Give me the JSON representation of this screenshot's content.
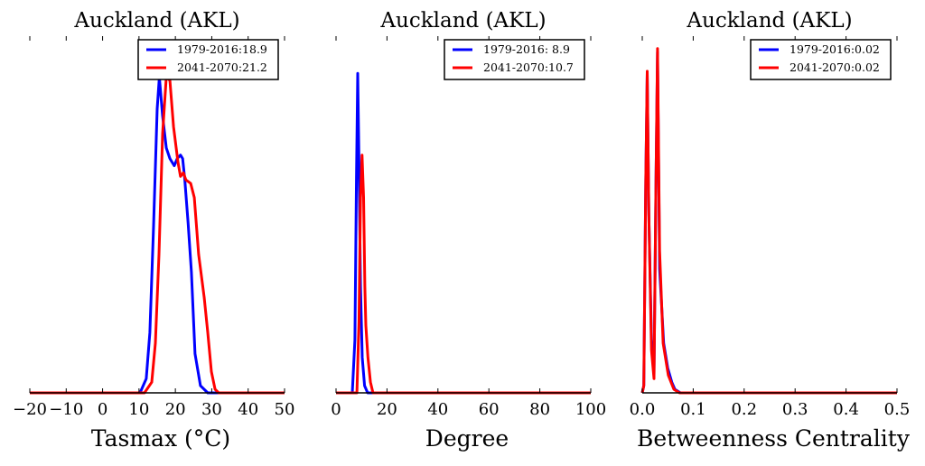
{
  "chart_data": [
    {
      "type": "line",
      "title": "Auckland (AKL)",
      "xlabel": "Tasmax ($^\\circ$C)",
      "xlabel_display": "Tasmax (°C)",
      "ylabel": "",
      "xlim": [
        -20,
        50
      ],
      "ylim": [
        0,
        1
      ],
      "xticks": [
        -20,
        -10,
        0,
        10,
        20,
        30,
        40,
        50
      ],
      "xtick_labels": [
        "−20",
        "−10",
        "0",
        "10",
        "20",
        "30",
        "40",
        "50"
      ],
      "legend_position": "top-right",
      "series": [
        {
          "name": "1979-2016:18.9",
          "color": "#0000ff",
          "x": [
            -20,
            10,
            10.5,
            12,
            13,
            14,
            15,
            15.6,
            16.5,
            17.5,
            18.5,
            19.7,
            20.5,
            21.4,
            22,
            22.6,
            23.5,
            24.4,
            25.4,
            26.9,
            28.9,
            50
          ],
          "y": [
            0,
            0,
            0.005,
            0.04,
            0.17,
            0.47,
            0.8,
            0.89,
            0.78,
            0.69,
            0.66,
            0.64,
            0.66,
            0.67,
            0.66,
            0.6,
            0.48,
            0.34,
            0.11,
            0.02,
            0,
            0
          ]
        },
        {
          "name": "2041-2070:21.2",
          "color": "#ff0000",
          "x": [
            -20,
            11.5,
            13.5,
            14.5,
            15.5,
            16.5,
            17.5,
            18.5,
            19.5,
            20.7,
            21.4,
            22.2,
            22.9,
            24.2,
            25.2,
            26.4,
            27.9,
            28.9,
            29.9,
            30.9,
            31.9,
            50
          ],
          "y": [
            0,
            0,
            0.03,
            0.14,
            0.39,
            0.73,
            0.89,
            0.88,
            0.75,
            0.65,
            0.61,
            0.62,
            0.6,
            0.59,
            0.55,
            0.39,
            0.27,
            0.17,
            0.06,
            0.01,
            0,
            0
          ]
        }
      ]
    },
    {
      "type": "line",
      "title": "Auckland (AKL)",
      "xlabel": "Degree",
      "xlabel_display": "Degree",
      "ylabel": "",
      "xlim": [
        0,
        100
      ],
      "ylim": [
        0,
        1
      ],
      "xticks": [
        0,
        20,
        40,
        60,
        80,
        100
      ],
      "xtick_labels": [
        "0",
        "20",
        "40",
        "60",
        "80",
        "100"
      ],
      "legend_position": "top-right",
      "series": [
        {
          "name": "1979-2016: 8.9",
          "color": "#0000ff",
          "x": [
            0,
            6.4,
            7.4,
            8.0,
            8.5,
            9.0,
            9.6,
            10.3,
            11.2,
            12.4,
            100
          ],
          "y": [
            0,
            0,
            0.15,
            0.6,
            0.9,
            0.65,
            0.3,
            0.1,
            0.02,
            0,
            0
          ]
        },
        {
          "name": "2041-2070:10.7",
          "color": "#ff0000",
          "x": [
            0,
            8.2,
            9.0,
            9.6,
            10.2,
            10.8,
            11.3,
            11.7,
            12.5,
            13.5,
            14.5,
            100
          ],
          "y": [
            0,
            0,
            0.2,
            0.55,
            0.67,
            0.55,
            0.3,
            0.19,
            0.1,
            0.03,
            0,
            0
          ]
        }
      ]
    },
    {
      "type": "line",
      "title": "Auckland (AKL)",
      "xlabel": "Betweenness Centrality",
      "xlabel_display": "Betweenness Centrality",
      "ylabel": "",
      "xlim": [
        0,
        0.5
      ],
      "ylim": [
        0,
        1
      ],
      "xticks": [
        0,
        0.1,
        0.2,
        0.3,
        0.4,
        0.5
      ],
      "xtick_labels": [
        "0.0",
        "0.1",
        "0.2",
        "0.3",
        "0.4",
        "0.5"
      ],
      "legend_position": "top-right",
      "series": [
        {
          "name": "1979-2016:0.02",
          "color": "#0000ff",
          "x": [
            0,
            0.003,
            0.007,
            0.0097,
            0.013,
            0.018,
            0.023,
            0.027,
            0.03,
            0.034,
            0.042,
            0.05,
            0.058,
            0.064,
            0.075,
            0.5
          ],
          "y": [
            0,
            0.02,
            0.6,
            0.9,
            0.5,
            0.15,
            0.05,
            0.6,
            0.96,
            0.35,
            0.14,
            0.07,
            0.03,
            0.01,
            0,
            0
          ]
        },
        {
          "name": "2041-2070:0.02",
          "color": "#ff0000",
          "x": [
            0,
            0.003,
            0.007,
            0.0097,
            0.013,
            0.018,
            0.023,
            0.027,
            0.03,
            0.034,
            0.041,
            0.051,
            0.062,
            0.073,
            0.5
          ],
          "y": [
            0,
            0.02,
            0.6,
            0.906,
            0.5,
            0.12,
            0.04,
            0.6,
            0.97,
            0.4,
            0.14,
            0.05,
            0.01,
            0,
            0
          ]
        }
      ]
    }
  ]
}
